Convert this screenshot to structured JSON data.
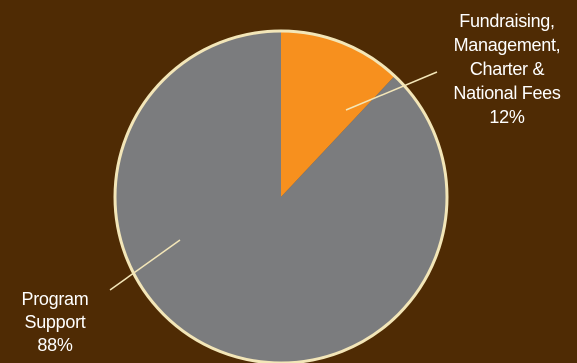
{
  "chart_data": {
    "type": "pie",
    "slices": [
      {
        "label_lines": [
          "Fundraising,",
          "Management,",
          "Charter &",
          "National Fees"
        ],
        "value_text": "12%",
        "value": 12,
        "color": "#f7901e"
      },
      {
        "label_lines": [
          "Program",
          "Support"
        ],
        "value_text": "88%",
        "value": 88,
        "color": "#7b7c7e"
      }
    ],
    "border_color": "#f3e6b8",
    "leader_color": "#f3e6b8",
    "start": "12 o'clock, clockwise",
    "legend": "none"
  }
}
